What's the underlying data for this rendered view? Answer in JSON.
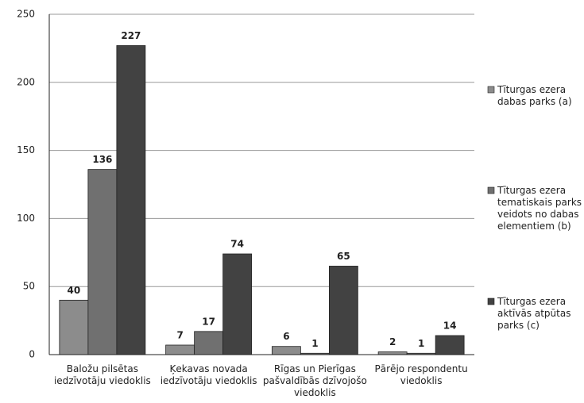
{
  "chart_data": {
    "type": "bar",
    "categories": [
      "Baložu pilsētas\niedzīvotāju viedoklis",
      "Ķekavas novada\niedzīvotāju viedoklis",
      "Rīgas un Pierīgas\npašvaldībās dzīvojošo\nviedoklis",
      "Pārējo respondentu\nviedoklis"
    ],
    "series": [
      {
        "name": "Tīturgas ezera\ndabas parks (a)",
        "color": "#8c8c8c",
        "values": [
          40,
          7,
          6,
          2
        ]
      },
      {
        "name": "Tīturgas ezera\ntematiskais parks\nveidots no dabas\nelementiem (b)",
        "color": "#707070",
        "values": [
          136,
          17,
          1,
          1
        ]
      },
      {
        "name": "Tīturgas ezera\naktīvās atpūtas\nparks (c)",
        "color": "#424242",
        "values": [
          227,
          74,
          65,
          14
        ]
      }
    ],
    "ylim": [
      0,
      250
    ],
    "yticks": [
      0,
      50,
      100,
      150,
      200,
      250
    ],
    "grid": true,
    "legend": "right"
  }
}
